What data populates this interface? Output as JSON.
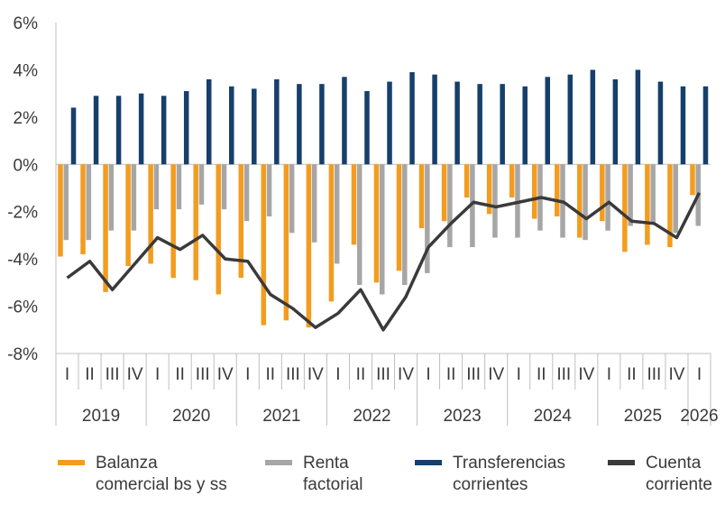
{
  "chart_data": {
    "type": "bar",
    "title": "",
    "xlabel": "",
    "ylabel": "",
    "ylim": [
      -8,
      6
    ],
    "yticks": [
      6,
      4,
      2,
      0,
      -2,
      -4,
      -6,
      -8
    ],
    "ytick_suffix": "%",
    "grid": false,
    "legend_position": "bottom",
    "quarters": [
      "I",
      "II",
      "III",
      "IV",
      "I",
      "II",
      "III",
      "IV",
      "I",
      "II",
      "III",
      "IV",
      "I",
      "II",
      "III",
      "IV",
      "I",
      "II",
      "III",
      "IV",
      "I",
      "II",
      "III",
      "IV",
      "I",
      "II",
      "III",
      "IV",
      "I"
    ],
    "years": [
      {
        "label": "2019",
        "quarters": 4
      },
      {
        "label": "2020",
        "quarters": 4
      },
      {
        "label": "2021",
        "quarters": 4
      },
      {
        "label": "2022",
        "quarters": 4
      },
      {
        "label": "2023",
        "quarters": 4
      },
      {
        "label": "2024",
        "quarters": 4
      },
      {
        "label": "2025",
        "quarters": 4
      },
      {
        "label": "2026",
        "quarters": 1
      }
    ],
    "series": [
      {
        "name": "Balanza comercial bs y ss",
        "kind": "bar",
        "color": "#f39c1f",
        "values": [
          -3.9,
          -3.8,
          -5.4,
          -4.3,
          -4.2,
          -4.8,
          -4.9,
          -5.5,
          -4.8,
          -6.8,
          -6.6,
          -6.9,
          -5.8,
          -3.4,
          -5.0,
          -4.5,
          -2.7,
          -2.4,
          -1.4,
          -2.1,
          -1.4,
          -2.3,
          -2.2,
          -3.1,
          -2.4,
          -3.7,
          -3.4,
          -3.5,
          -1.3
        ]
      },
      {
        "name": "Renta factorial",
        "kind": "bar",
        "color": "#a6a6a6",
        "values": [
          -3.2,
          -3.2,
          -2.8,
          -2.8,
          -1.9,
          -1.9,
          -1.7,
          -1.9,
          -2.4,
          -2.2,
          -2.9,
          -3.3,
          -4.2,
          -5.1,
          -5.5,
          -5.1,
          -4.6,
          -3.5,
          -3.5,
          -3.1,
          -3.1,
          -2.8,
          -3.1,
          -3.2,
          -2.8,
          -2.6,
          -2.5,
          -2.9,
          -2.6
        ]
      },
      {
        "name": "Transferencias corrientes",
        "kind": "bar",
        "color": "#163f6b",
        "values": [
          2.4,
          2.9,
          2.9,
          3.0,
          2.9,
          3.1,
          3.6,
          3.3,
          3.2,
          3.6,
          3.4,
          3.4,
          3.7,
          3.1,
          3.5,
          3.9,
          3.8,
          3.5,
          3.4,
          3.4,
          3.3,
          3.7,
          3.8,
          4.0,
          3.6,
          4.0,
          3.5,
          3.3,
          3.3
        ]
      },
      {
        "name": "Cuenta corriente",
        "kind": "line",
        "color": "#3a3a3a",
        "values": [
          -4.8,
          -4.1,
          -5.3,
          -4.2,
          -3.1,
          -3.6,
          -3.0,
          -4.0,
          -4.1,
          -5.5,
          -6.1,
          -6.9,
          -6.3,
          -5.3,
          -7.0,
          -5.6,
          -3.5,
          -2.5,
          -1.6,
          -1.8,
          -1.6,
          -1.4,
          -1.6,
          -2.3,
          -1.6,
          -2.4,
          -2.5,
          -3.1,
          -1.2
        ]
      }
    ]
  },
  "colors": {
    "text": "#3a3a3a",
    "axis": "#bfbfbf"
  }
}
